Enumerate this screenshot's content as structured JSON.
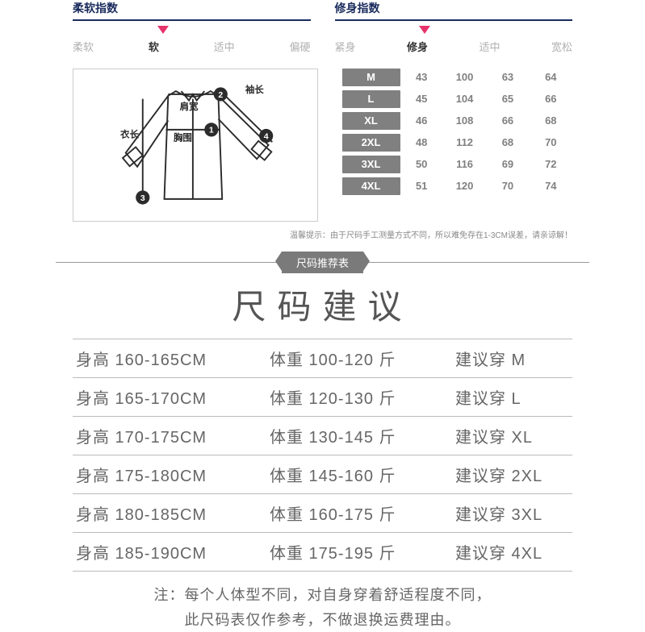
{
  "indices": {
    "softness": {
      "title": "柔软指数",
      "options": [
        "柔软",
        "软",
        "适中",
        "偏硬"
      ],
      "selectedIndex": 1,
      "markerPct": 38
    },
    "fit": {
      "title": "修身指数",
      "options": [
        "紧身",
        "修身",
        "适中",
        "宽松"
      ],
      "selectedIndex": 1,
      "markerPct": 38
    }
  },
  "diagram": {
    "labels": {
      "sleeve": "袖长",
      "shoulder": "肩宽",
      "chest": "胸围",
      "length": "衣长"
    },
    "numbers": [
      "1",
      "2",
      "3",
      "4"
    ],
    "stroke": "#2b2b2b",
    "numBg": "#2b2b2b"
  },
  "sizeTable": {
    "headerBg": "#808080",
    "headerColor": "#ffffff",
    "valueColor": "#808080",
    "rows": [
      {
        "size": "M",
        "v": [
          "43",
          "100",
          "63",
          "64"
        ]
      },
      {
        "size": "L",
        "v": [
          "45",
          "104",
          "65",
          "66"
        ]
      },
      {
        "size": "XL",
        "v": [
          "46",
          "108",
          "66",
          "68"
        ]
      },
      {
        "size": "2XL",
        "v": [
          "48",
          "112",
          "68",
          "70"
        ]
      },
      {
        "size": "3XL",
        "v": [
          "50",
          "116",
          "69",
          "72"
        ]
      },
      {
        "size": "4XL",
        "v": [
          "51",
          "120",
          "70",
          "74"
        ]
      }
    ],
    "tip": "温馨提示：由于尺码手工测量方式不同，所以难免存在1-3CM误差，请亲谅解！"
  },
  "dividerBadge": "尺码推荐表",
  "bigTitle": "尺码建议",
  "rec": {
    "heightLabel": "身高",
    "weightLabel": "体重",
    "suggestLabel": "建议穿",
    "weightUnit": "斤",
    "rows": [
      {
        "h": "160-165CM",
        "w": "100-120",
        "s": "M"
      },
      {
        "h": "165-170CM",
        "w": "120-130",
        "s": "L"
      },
      {
        "h": "170-175CM",
        "w": "130-145",
        "s": "XL"
      },
      {
        "h": "175-180CM",
        "w": "145-160",
        "s": "2XL"
      },
      {
        "h": "180-185CM",
        "w": "160-175",
        "s": "3XL"
      },
      {
        "h": "185-190CM",
        "w": "175-195",
        "s": "4XL"
      }
    ]
  },
  "note": {
    "l1": "注：每个人体型不同，对自身穿着舒适程度不同，",
    "l2": "此尺码表仅作参考，不做退换运费理由。"
  }
}
